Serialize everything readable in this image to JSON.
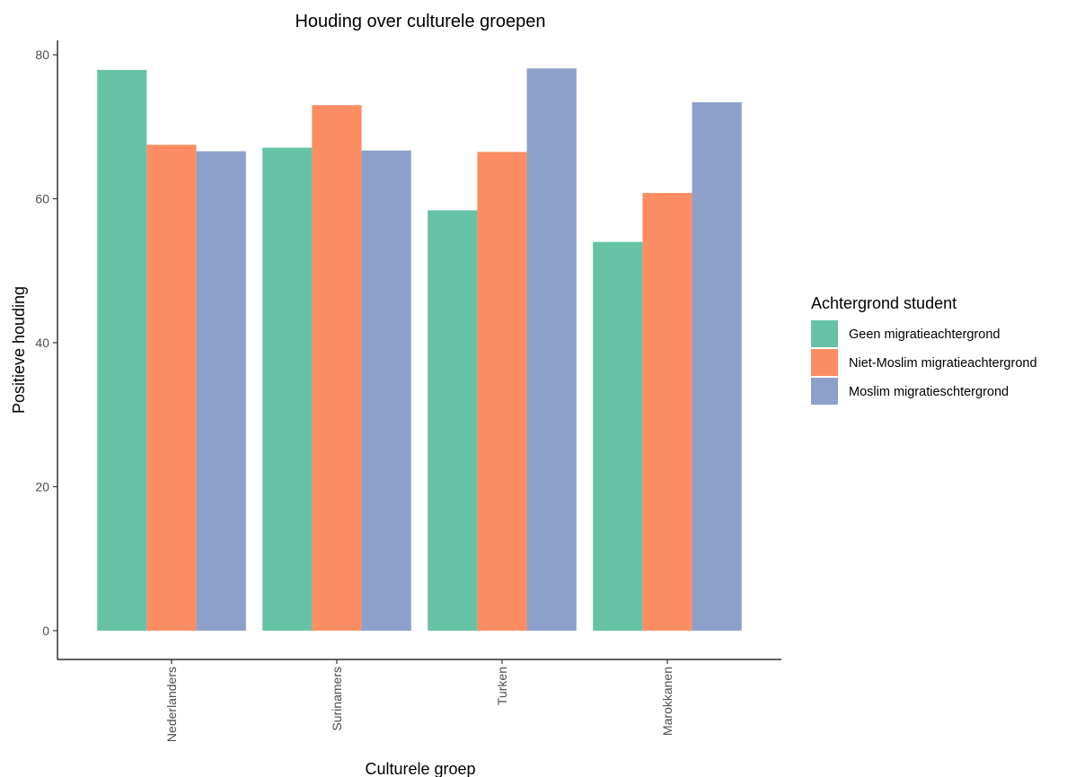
{
  "chart_data": {
    "type": "bar",
    "title": "Houding over culturele groepen",
    "xlabel": "Culturele groep",
    "ylabel": "Positieve houding",
    "categories": [
      "Nederlanders",
      "Surinamers",
      "Turken",
      "Marokkanen"
    ],
    "yticks": [
      0,
      20,
      40,
      60,
      80
    ],
    "ylim": [
      -4,
      82
    ],
    "legend_title": "Achtergrond student",
    "legend_position": "right",
    "grid": false,
    "series": [
      {
        "name": "Geen migratieachtergrond",
        "color": "#66c2a5",
        "values": [
          77.9,
          67.1,
          58.4,
          54.0
        ]
      },
      {
        "name": "Niet-Moslim migratieachtergrond",
        "color": "#fc8d62",
        "values": [
          67.5,
          73.0,
          66.5,
          60.8
        ]
      },
      {
        "name": "Moslim migratieschtergrond",
        "color": "#8da0cb",
        "values": [
          66.6,
          66.7,
          78.1,
          73.4
        ]
      }
    ]
  }
}
